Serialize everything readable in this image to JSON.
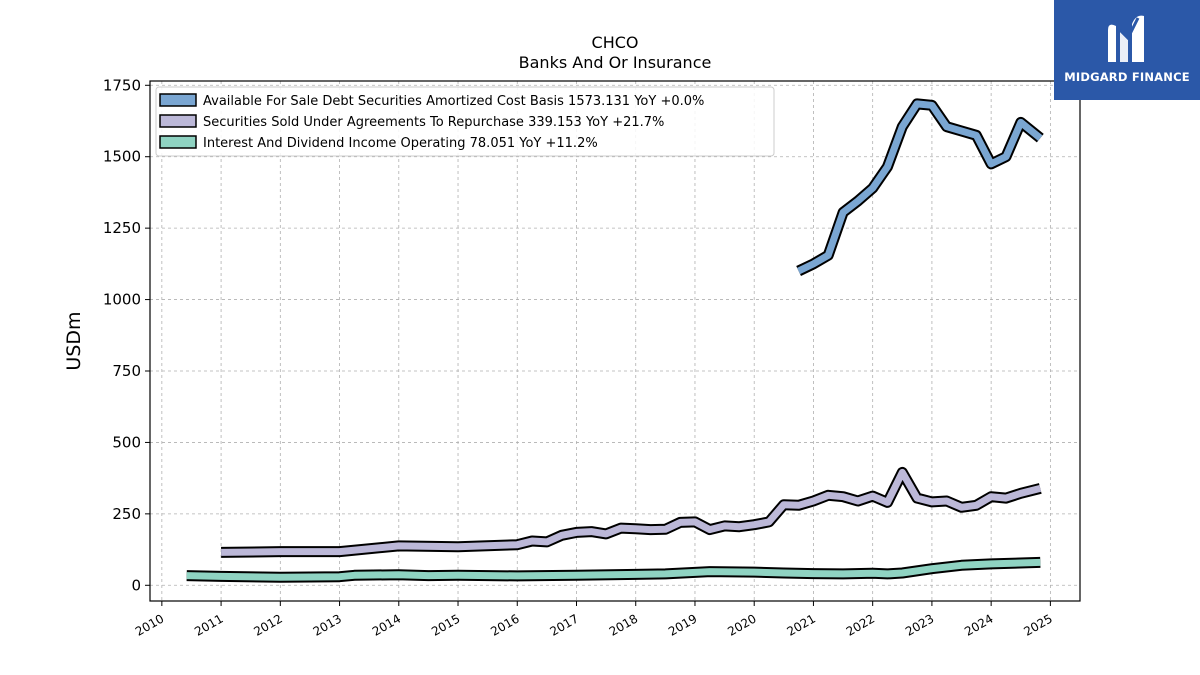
{
  "chart_data": {
    "type": "line",
    "title": "CHCO",
    "subtitle": "Banks And Or Insurance",
    "xlabel": "",
    "ylabel": "USDm",
    "xlim": [
      2009.8,
      2025.5
    ],
    "ylim": [
      -55,
      1765
    ],
    "x_ticks": [
      2010,
      2011,
      2012,
      2013,
      2014,
      2015,
      2016,
      2017,
      2018,
      2019,
      2020,
      2021,
      2022,
      2023,
      2024,
      2025
    ],
    "y_ticks": [
      0,
      250,
      500,
      750,
      1000,
      1250,
      1500,
      1750
    ],
    "grid": true,
    "legend_position": "top-left",
    "series": [
      {
        "name": "Available For Sale Debt Securities Amortized Cost Basis",
        "legend_label": "Available For Sale Debt Securities Amortized Cost Basis  1573.131 YoY +0.0%",
        "color": "#7aa6d2",
        "points": [
          [
            2020.75,
            1100
          ],
          [
            2021.0,
            1125
          ],
          [
            2021.25,
            1155
          ],
          [
            2021.5,
            1305
          ],
          [
            2021.75,
            1345
          ],
          [
            2022.0,
            1390
          ],
          [
            2022.25,
            1465
          ],
          [
            2022.5,
            1605
          ],
          [
            2022.75,
            1685
          ],
          [
            2023.0,
            1680
          ],
          [
            2023.25,
            1605
          ],
          [
            2023.5,
            1590
          ],
          [
            2023.75,
            1575
          ],
          [
            2024.0,
            1475
          ],
          [
            2024.25,
            1500
          ],
          [
            2024.5,
            1620
          ],
          [
            2024.83,
            1565
          ]
        ]
      },
      {
        "name": "Securities Sold Under Agreements To Repurchase",
        "legend_label": "Securities Sold Under Agreements To Repurchase  339.153 YoY +21.7%",
        "color": "#bcb8d8",
        "points": [
          [
            2011.0,
            115
          ],
          [
            2012.0,
            118
          ],
          [
            2013.0,
            118
          ],
          [
            2014.0,
            138
          ],
          [
            2015.0,
            135
          ],
          [
            2016.0,
            142
          ],
          [
            2016.25,
            155
          ],
          [
            2016.5,
            152
          ],
          [
            2016.75,
            175
          ],
          [
            2017.0,
            185
          ],
          [
            2017.25,
            188
          ],
          [
            2017.5,
            180
          ],
          [
            2017.75,
            200
          ],
          [
            2018.0,
            198
          ],
          [
            2018.25,
            195
          ],
          [
            2018.5,
            196
          ],
          [
            2018.75,
            220
          ],
          [
            2019.0,
            222
          ],
          [
            2019.25,
            195
          ],
          [
            2019.5,
            208
          ],
          [
            2019.75,
            205
          ],
          [
            2020.0,
            212
          ],
          [
            2020.25,
            222
          ],
          [
            2020.5,
            282
          ],
          [
            2020.75,
            280
          ],
          [
            2021.0,
            295
          ],
          [
            2021.25,
            315
          ],
          [
            2021.5,
            310
          ],
          [
            2021.75,
            295
          ],
          [
            2022.0,
            312
          ],
          [
            2022.25,
            290
          ],
          [
            2022.5,
            395
          ],
          [
            2022.75,
            305
          ],
          [
            2023.0,
            292
          ],
          [
            2023.25,
            295
          ],
          [
            2023.5,
            273
          ],
          [
            2023.75,
            280
          ],
          [
            2024.0,
            310
          ],
          [
            2024.25,
            305
          ],
          [
            2024.5,
            322
          ],
          [
            2024.83,
            339
          ]
        ]
      },
      {
        "name": "Interest And Dividend Income Operating",
        "legend_label": "Interest And Dividend Income Operating  78.051 YoY +11.2%",
        "color": "#8fd3c2",
        "points": [
          [
            2010.42,
            34
          ],
          [
            2011.0,
            31
          ],
          [
            2012.0,
            28
          ],
          [
            2013.0,
            30
          ],
          [
            2013.25,
            35
          ],
          [
            2014.0,
            37
          ],
          [
            2014.5,
            34
          ],
          [
            2015.0,
            35
          ],
          [
            2016.0,
            33
          ],
          [
            2017.0,
            35
          ],
          [
            2018.0,
            38
          ],
          [
            2018.5,
            40
          ],
          [
            2019.0,
            45
          ],
          [
            2019.25,
            48
          ],
          [
            2020.0,
            46
          ],
          [
            2020.5,
            43
          ],
          [
            2021.0,
            41
          ],
          [
            2021.5,
            40
          ],
          [
            2022.0,
            42
          ],
          [
            2022.25,
            40
          ],
          [
            2022.5,
            43
          ],
          [
            2023.0,
            58
          ],
          [
            2023.5,
            70
          ],
          [
            2024.0,
            75
          ],
          [
            2024.83,
            80
          ]
        ]
      }
    ]
  },
  "logo": {
    "text": "MIDGARD FINANCE",
    "color": "#2b58a8"
  }
}
